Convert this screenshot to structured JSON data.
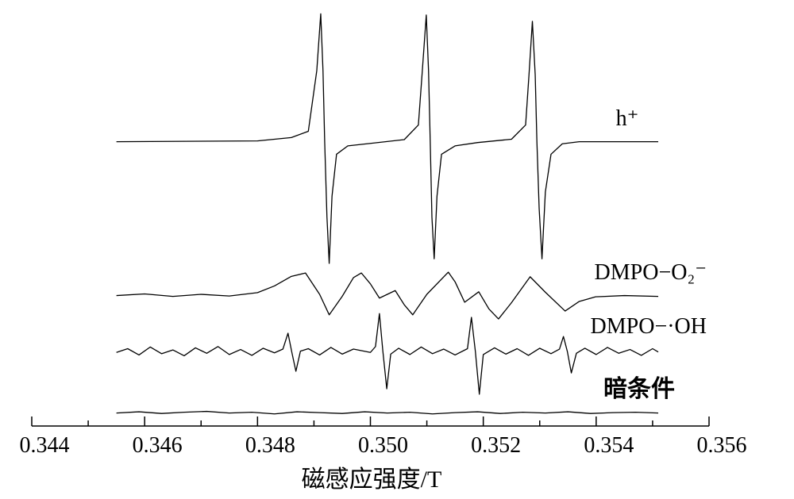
{
  "chart_data": {
    "type": "line",
    "x_label": "磁感应强度/T",
    "xlim": [
      0.344,
      0.356
    ],
    "ylim": [
      0,
      100
    ],
    "xticks": [
      0.344,
      {
        "value": 0.345,
        "label": null
      },
      0.346,
      {
        "value": 0.347,
        "label": null
      },
      0.348,
      {
        "value": 0.349,
        "label": null
      },
      {
        "value": 0.35,
        "label": "0.350"
      },
      {
        "value": 0.351,
        "label": null
      },
      0.352,
      {
        "value": 0.353,
        "label": null
      },
      0.354,
      {
        "value": 0.355,
        "label": null
      },
      0.356
    ],
    "grid": false,
    "series": [
      {
        "name": "h⁺",
        "color": "#000000",
        "x": [
          0.3455,
          0.348,
          0.3486,
          0.3489,
          0.34905,
          0.34912,
          0.34916,
          0.34919,
          0.34923,
          0.34927,
          0.34932,
          0.3494,
          0.3496,
          0.35,
          0.3506,
          0.35085,
          0.35092,
          0.35099,
          0.35103,
          0.35106,
          0.35109,
          0.35113,
          0.35118,
          0.35126,
          0.3515,
          0.3519,
          0.3525,
          0.35275,
          0.35281,
          0.35287,
          0.35292,
          0.35295,
          0.35299,
          0.35304,
          0.3531,
          0.3532,
          0.3534,
          0.3537,
          0.3551
        ],
        "values": [
          68,
          68.2,
          69,
          70.5,
          85,
          98.6,
          85,
          68,
          50,
          38.9,
          55,
          65,
          67,
          67.6,
          68.5,
          72,
          85,
          98.3,
          85,
          68,
          50,
          40,
          55,
          65,
          67,
          67.8,
          68.6,
          72,
          84,
          96.8,
          84,
          68,
          52,
          40,
          56,
          65,
          67.5,
          68,
          68
        ]
      },
      {
        "name": "DMPO−O₂⁻",
        "color": "#000000",
        "x": [
          0.3455,
          0.346,
          0.3465,
          0.347,
          0.3475,
          0.348,
          0.3483,
          0.3486,
          0.34885,
          0.3491,
          0.34927,
          0.3495,
          0.3497,
          0.34984,
          0.35,
          0.35016,
          0.35044,
          0.3506,
          0.35075,
          0.351,
          0.35138,
          0.3515,
          0.35167,
          0.35192,
          0.3521,
          0.35227,
          0.3525,
          0.35283,
          0.3531,
          0.35345,
          0.3537,
          0.35399,
          0.3545,
          0.3551
        ],
        "values": [
          31.2,
          31.6,
          31.0,
          31.5,
          31.1,
          31.9,
          33.5,
          35.8,
          36.6,
          31.5,
          26.6,
          31.0,
          35.5,
          36.6,
          34.0,
          30.6,
          32.4,
          29.0,
          26.6,
          31.5,
          36.8,
          34.5,
          29.6,
          32.1,
          28.0,
          25.6,
          29.5,
          35.7,
          32.0,
          27.5,
          29.8,
          30.9,
          31.2,
          31.0
        ]
      },
      {
        "name": "DMPO−·OH",
        "color": "#000000",
        "x": [
          0.3455,
          0.3457,
          0.3459,
          0.3461,
          0.3463,
          0.3465,
          0.3467,
          0.3469,
          0.3471,
          0.3473,
          0.3475,
          0.3477,
          0.3479,
          0.3481,
          0.3483,
          0.34845,
          0.34854,
          0.34861,
          0.34868,
          0.34876,
          0.3489,
          0.3491,
          0.3493,
          0.3495,
          0.3497,
          0.35,
          0.35009,
          0.35016,
          0.35022,
          0.35029,
          0.35036,
          0.3505,
          0.3507,
          0.3509,
          0.3511,
          0.3513,
          0.3515,
          0.35172,
          0.35179,
          0.35186,
          0.35193,
          0.352,
          0.3522,
          0.3524,
          0.3526,
          0.3528,
          0.353,
          0.3532,
          0.35335,
          0.35342,
          0.35349,
          0.35356,
          0.35365,
          0.3538,
          0.354,
          0.3542,
          0.3544,
          0.3546,
          0.3548,
          0.355,
          0.3551
        ],
        "values": [
          17.6,
          18.5,
          17.0,
          18.9,
          17.3,
          18.2,
          16.8,
          18.7,
          17.4,
          19.0,
          17.1,
          18.3,
          16.9,
          18.6,
          17.5,
          18.4,
          22.2,
          17.5,
          13.1,
          17.9,
          18.5,
          17.0,
          18.8,
          17.2,
          18.4,
          17.6,
          19,
          26.9,
          18,
          8.9,
          17.2,
          18.6,
          17.1,
          18.9,
          17.3,
          18.4,
          17.0,
          18.5,
          26.0,
          17.8,
          7.6,
          17.1,
          18.7,
          17.2,
          18.5,
          16.9,
          18.6,
          17.3,
          18.4,
          21.4,
          17.8,
          12.7,
          17.4,
          18.6,
          17.1,
          18.8,
          17.4,
          18.3,
          16.9,
          18.5,
          17.7
        ]
      },
      {
        "name": "暗条件",
        "color": "#000000",
        "x": [
          0.3455,
          0.3459,
          0.3463,
          0.3467,
          0.3471,
          0.3475,
          0.3479,
          0.3483,
          0.3487,
          0.3491,
          0.3495,
          0.3499,
          0.3503,
          0.3507,
          0.3511,
          0.3515,
          0.3519,
          0.3523,
          0.3527,
          0.3531,
          0.3535,
          0.3539,
          0.3543,
          0.3547,
          0.3551
        ],
        "values": [
          3.1,
          3.4,
          3.0,
          3.3,
          3.5,
          3.1,
          3.3,
          2.9,
          3.4,
          3.2,
          3.0,
          3.4,
          3.1,
          3.3,
          2.9,
          3.2,
          3.4,
          3.0,
          3.3,
          3.1,
          3.4,
          3.0,
          3.2,
          3.3,
          3.1
        ]
      }
    ]
  }
}
